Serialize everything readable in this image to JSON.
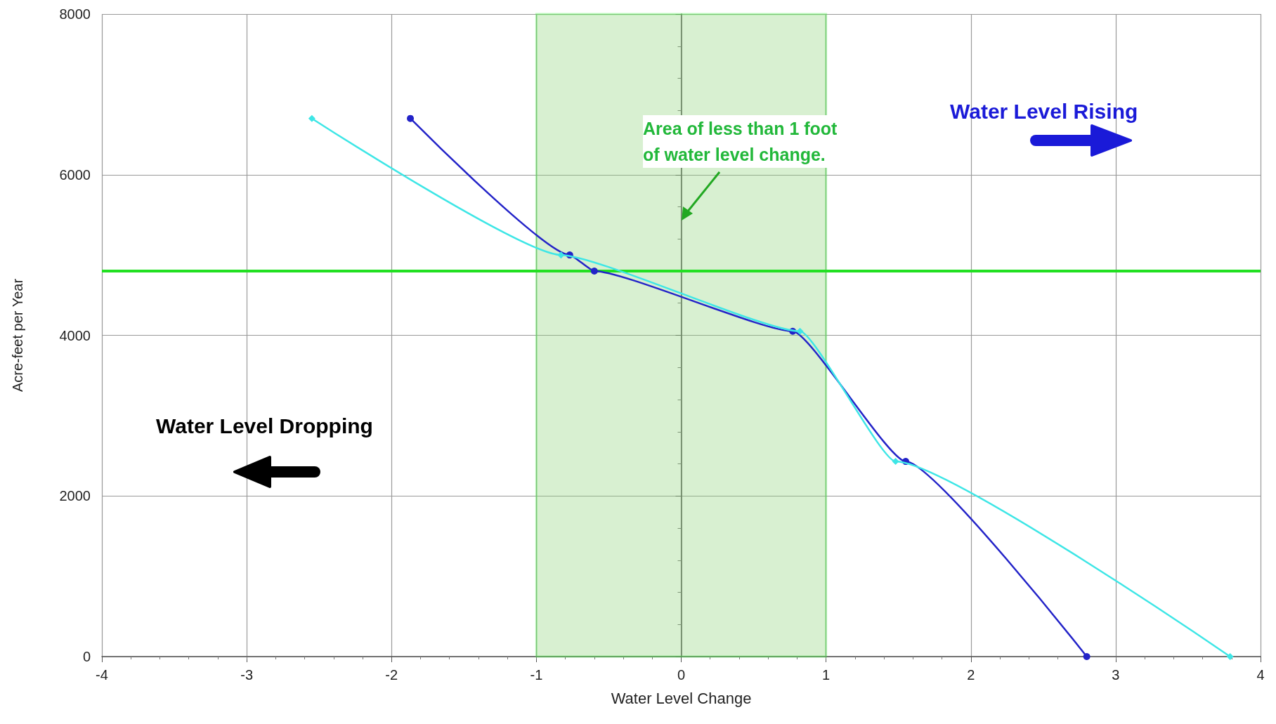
{
  "chart_data": {
    "type": "line",
    "xlabel": "Water Level Change",
    "ylabel": "Acre-feet per Year",
    "xlim": [
      -4,
      4
    ],
    "xticks": [
      -4,
      -3,
      -2,
      -1,
      0,
      1,
      2,
      3,
      4
    ],
    "ylim": [
      0,
      8000
    ],
    "yticks": [
      0,
      2000,
      4000,
      6000,
      8000
    ],
    "grid": true,
    "line_style": "solid",
    "series": [
      {
        "color": "#2323c8",
        "marker": "circle",
        "x": [
          -1.87,
          -0.77,
          -0.6,
          0.77,
          1.55,
          2.8
        ],
        "values": [
          6700,
          5000,
          4800,
          4050,
          2430,
          0
        ]
      },
      {
        "color": "#3ee6e6",
        "marker": "diamond",
        "x": [
          -2.55,
          -0.83,
          0.82,
          1.48,
          3.79
        ],
        "values": [
          6700,
          5000,
          4050,
          2430,
          0
        ]
      }
    ],
    "ref_lines": [
      {
        "axis": "y",
        "value": 4800,
        "color": "#22e022"
      }
    ],
    "bands": [
      {
        "axis": "x",
        "from": -1,
        "to": 1,
        "color": "#8fd47a"
      }
    ],
    "annotations": [
      "Water Level Rising",
      "Water Level Dropping",
      "Area of less than 1 foot of water level change."
    ]
  }
}
